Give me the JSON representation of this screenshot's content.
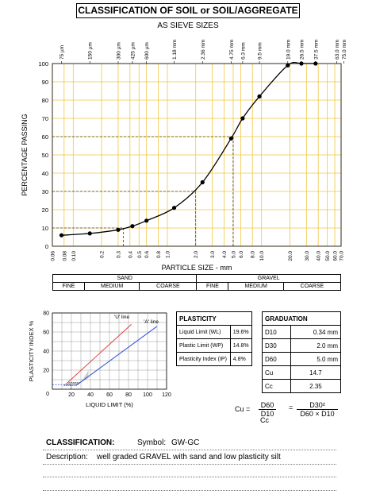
{
  "title": "CLASSIFICATION OF SOIL or SOIL/AGGREGATE",
  "subtitle": "AS SIEVE SIZES",
  "chart_data": {
    "type": "line",
    "title": "CLASSIFICATION OF SOIL or SOIL/AGGREGATE",
    "subtitle": "AS SIEVE SIZES",
    "xlabel": "PARTICLE SIZE - mm",
    "ylabel": "PERCENTAGE PASSING",
    "xscale": "log",
    "xlim": [
      0.06,
      70
    ],
    "ylim": [
      0,
      100
    ],
    "yticks": [
      0,
      10,
      20,
      30,
      40,
      50,
      60,
      70,
      80,
      90,
      100
    ],
    "xticks_bottom": [
      "0.06",
      "0.08",
      "0.10",
      "0.2",
      "0.3",
      "0.4",
      "0.5",
      "0.6",
      "0.8",
      "1.0",
      "2.0",
      "3.0",
      "4.0",
      "5.0",
      "6.0",
      "8.0",
      "10.0",
      "20.0",
      "30.0",
      "40.0",
      "50.0",
      "60.0",
      "70.0"
    ],
    "sieve_labels": [
      "75 µm",
      "150 µm",
      "300 µm",
      "425 µm",
      "600 µm",
      "1.18 mm",
      "2.36 mm",
      "4.75 mm",
      "6.3 mm",
      "9.5 mm",
      "19.0 mm",
      "26.5 mm",
      "37.5 mm",
      "63.0 mm",
      "75.0 mm"
    ],
    "grid": true,
    "series": [
      {
        "x": [
          0.075,
          0.15,
          0.3,
          0.425,
          0.6,
          1.18,
          2.36,
          4.75,
          6.3,
          9.5,
          19.0,
          26.5,
          37.5
        ],
        "y": [
          6,
          7,
          9,
          11,
          14,
          21,
          35,
          59,
          70,
          82,
          99,
          100,
          100
        ]
      }
    ],
    "reference_lines": {
      "D10": {
        "size": 0.34,
        "percent": 10
      },
      "D30": {
        "size": 2.0,
        "percent": 30
      },
      "D60": {
        "size": 5.0,
        "percent": 60
      }
    }
  },
  "soil_classes": {
    "groups": [
      "SAND",
      "GRAVEL"
    ],
    "subgroups": [
      "FINE",
      "MEDIUM",
      "COARSE",
      "FINE",
      "MEDIUM",
      "COARSE"
    ]
  },
  "plasticity_chart": {
    "type": "line",
    "xlabel": "LIQUID LIMIT (%)",
    "ylabel": "PLASTICITY INDEX %",
    "xticks": [
      "20",
      "40",
      "60",
      "80",
      "100",
      "120"
    ],
    "yticks": [
      "20",
      "40",
      "60",
      "80"
    ],
    "extra_ytick": "0",
    "u_line_label": "'U' line",
    "a_line_label": "'A' line",
    "xlim": [
      0,
      120
    ],
    "ylim": [
      0,
      80
    ],
    "u_line": {
      "x": [
        16,
        83
      ],
      "y": [
        7,
        68
      ]
    },
    "a_line": {
      "x": [
        25,
        110
      ],
      "y": [
        4,
        66
      ]
    },
    "sample_point": {
      "x": 19.6,
      "y": 4.8
    },
    "line_colors": {
      "u_line": "#e04040",
      "a_line": "#3050d0"
    }
  },
  "plasticity": {
    "header": "PLASTICITY",
    "rows": [
      {
        "label": "Liquid Limit (WL)",
        "value": "19.6%"
      },
      {
        "label": "Plastic Limit (WP)",
        "value": "14.8%"
      },
      {
        "label": "Plasticity Index (IP)",
        "value": "4.8%"
      }
    ]
  },
  "graduation": {
    "header": "GRADUATION",
    "rows": [
      {
        "label": "D10",
        "value": "0.34 mm"
      },
      {
        "label": "D30",
        "value": "2.0 mm"
      },
      {
        "label": "D60",
        "value": "5.0 mm"
      },
      {
        "label": "Cu",
        "value": "14.7"
      },
      {
        "label": "Cc",
        "value": "2.35"
      }
    ]
  },
  "formulas": {
    "cu_label": "Cu =",
    "cu_num": "D60",
    "cu_den": "D10",
    "cc_label": "Cc",
    "eq": "=",
    "cc_num": "D30²",
    "cc_den": "D60 × D10"
  },
  "classification": {
    "label": "CLASSIFICATION:",
    "symbol_label": "Symbol:",
    "symbol": "GW-GC",
    "description_label": "Description:",
    "description": "well graded GRAVEL with sand and low plasticity silt"
  }
}
